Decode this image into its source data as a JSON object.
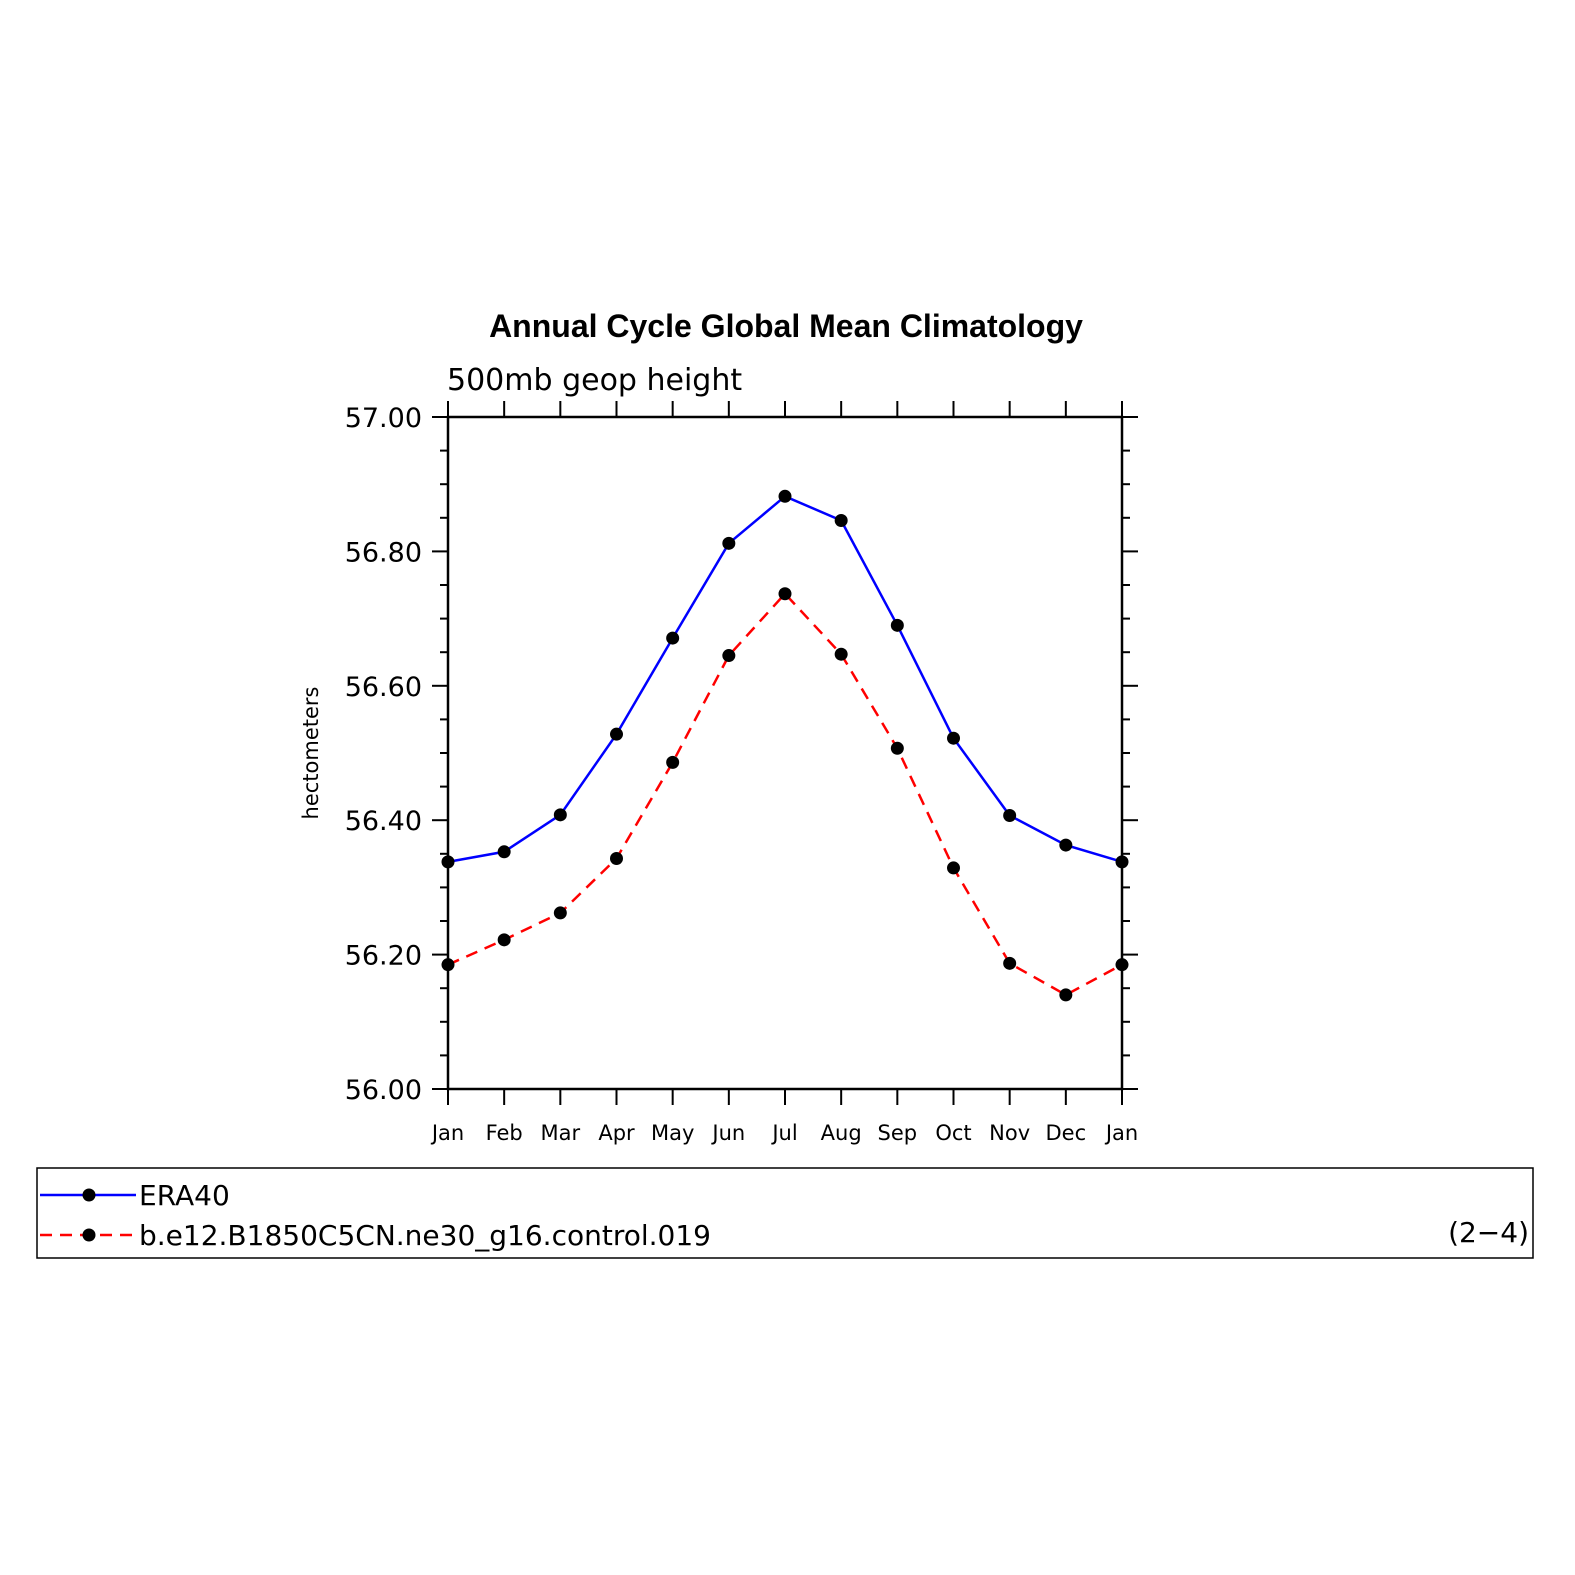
{
  "chart_data": {
    "type": "line",
    "title": "Annual Cycle Global Mean Climatology",
    "subtitle": "500mb geop height",
    "ylabel": "hectometers",
    "xlabel": "",
    "categories": [
      "Jan",
      "Feb",
      "Mar",
      "Apr",
      "May",
      "Jun",
      "Jul",
      "Aug",
      "Sep",
      "Oct",
      "Nov",
      "Dec",
      "Jan"
    ],
    "ylim": [
      56.0,
      57.0
    ],
    "yticks": [
      "56.00",
      "56.20",
      "56.40",
      "56.60",
      "56.80",
      "57.00"
    ],
    "grid": false,
    "legend_position": "bottom",
    "panel_label": "(2−4)",
    "series": [
      {
        "name": "ERA40",
        "color": "#0000ff",
        "dash": "solid",
        "marker": "circle",
        "values": [
          56.338,
          56.353,
          56.408,
          56.528,
          56.671,
          56.812,
          56.882,
          56.846,
          56.69,
          56.522,
          56.407,
          56.363,
          56.338
        ]
      },
      {
        "name": "b.e12.B1850C5CN.ne30_g16.control.019",
        "color": "#ff0000",
        "dash": "dashed",
        "marker": "circle",
        "values": [
          56.185,
          56.222,
          56.262,
          56.343,
          56.486,
          56.645,
          56.737,
          56.647,
          56.507,
          56.329,
          56.187,
          56.14,
          56.185
        ]
      }
    ]
  }
}
